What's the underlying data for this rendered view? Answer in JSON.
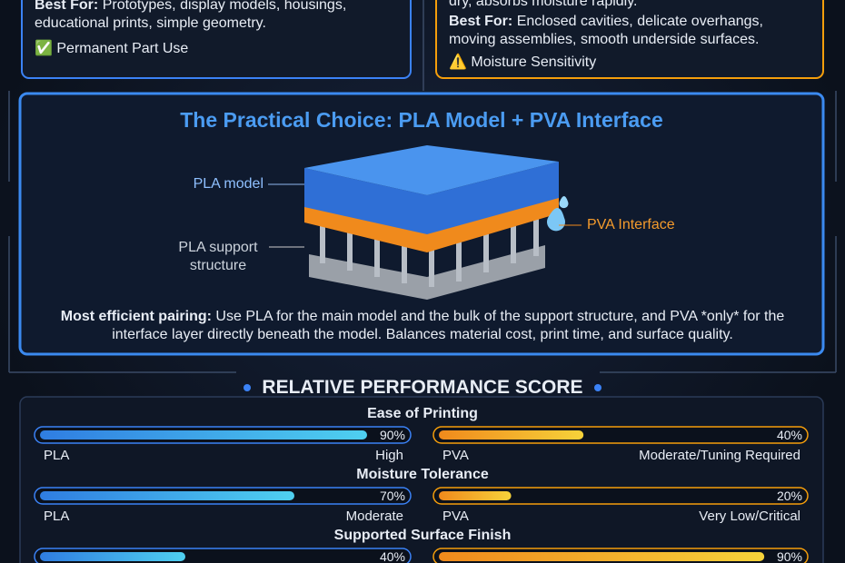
{
  "top_left": {
    "best_for_label": "Best For:",
    "best_for_text": "Prototypes, display models, housings, educational prints, simple geometry.",
    "badge": "✅ Permanent Part Use"
  },
  "top_right": {
    "intro": "dry, absorbs moisture rapidly.",
    "best_for_label": "Best For:",
    "best_for_text": "Enclosed cavities, delicate overhangs, moving assemblies, smooth underside surfaces.",
    "badge": "⚠️ Moisture Sensitivity"
  },
  "practical": {
    "title": "The Practical Choice: PLA Model + PVA Interface",
    "label_model": "PLA model",
    "label_support": "PLA support structure",
    "label_interface": "PVA Interface",
    "summary_label": "Most efficient pairing:",
    "summary_text": "Use PLA for the main model and the bulk of the support structure, and PVA *only* for the interface layer directly beneath the model. Balances material cost, print time, and surface quality."
  },
  "scores": {
    "title": "RELATIVE PERFORMANCE SCORE",
    "metrics": [
      {
        "name": "Ease of Printing",
        "pla": {
          "material": "PLA",
          "value": 90,
          "value_label": "90%",
          "rating": "High"
        },
        "pva": {
          "material": "PVA",
          "value": 40,
          "value_label": "40%",
          "rating": "Moderate/Tuning Required"
        }
      },
      {
        "name": "Moisture Tolerance",
        "pla": {
          "material": "PLA",
          "value": 70,
          "value_label": "70%",
          "rating": "Moderate"
        },
        "pva": {
          "material": "PVA",
          "value": 20,
          "value_label": "20%",
          "rating": "Very Low/Critical"
        }
      },
      {
        "name": "Supported Surface Finish",
        "pla": {
          "material": "PLA",
          "value": 40,
          "value_label": "40%"
        },
        "pva": {
          "material": "PVA",
          "value": 90,
          "value_label": "90%"
        }
      }
    ]
  }
}
